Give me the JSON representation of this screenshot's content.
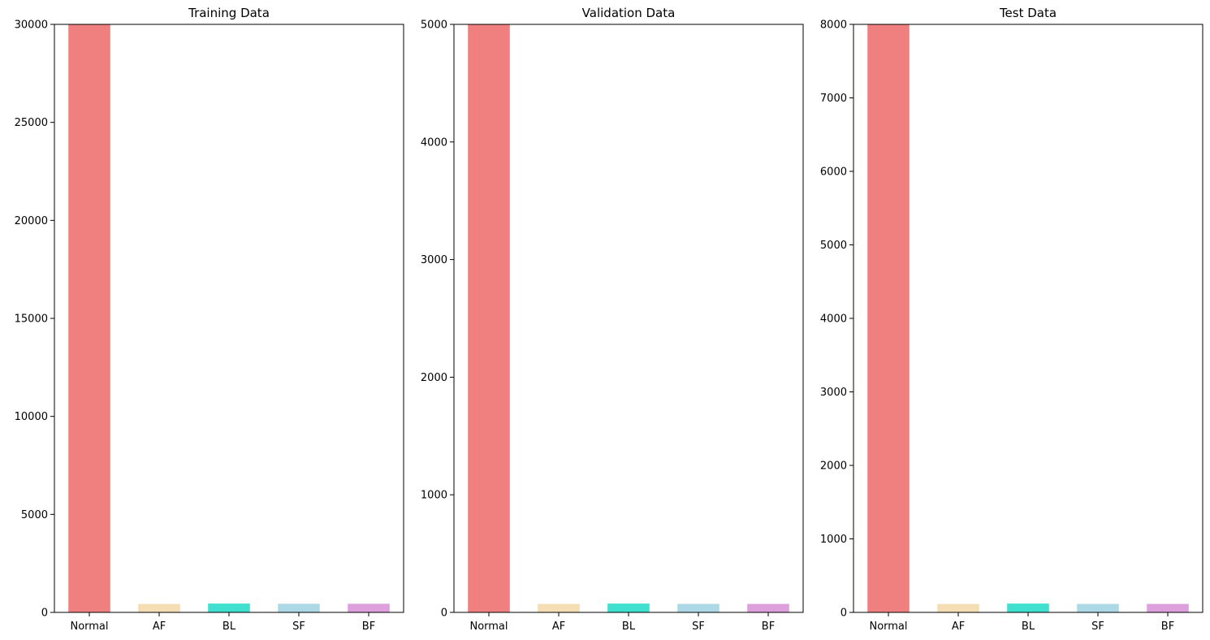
{
  "figure": {
    "background": "#ffffff"
  },
  "chart_data": [
    {
      "type": "bar",
      "title": "Training Data",
      "categories": [
        "Normal",
        "AF",
        "BL",
        "SF",
        "BF"
      ],
      "values": [
        30000,
        430,
        450,
        440,
        440
      ],
      "colors": [
        "#f08080",
        "#f5deb3",
        "#40e0d0",
        "#add8e6",
        "#dda0dd"
      ],
      "ylim": [
        0,
        30000
      ],
      "yticks": [
        0,
        5000,
        10000,
        15000,
        20000,
        25000,
        30000
      ],
      "xlabel": "",
      "ylabel": "",
      "grid": false,
      "legend": false
    },
    {
      "type": "bar",
      "title": "Validation Data",
      "categories": [
        "Normal",
        "AF",
        "BL",
        "SF",
        "BF"
      ],
      "values": [
        5000,
        72,
        75,
        72,
        72
      ],
      "colors": [
        "#f08080",
        "#f5deb3",
        "#40e0d0",
        "#add8e6",
        "#dda0dd"
      ],
      "ylim": [
        0,
        5000
      ],
      "yticks": [
        0,
        1000,
        2000,
        3000,
        4000,
        5000
      ],
      "xlabel": "",
      "ylabel": "",
      "grid": false,
      "legend": false
    },
    {
      "type": "bar",
      "title": "Test Data",
      "categories": [
        "Normal",
        "AF",
        "BL",
        "SF",
        "BF"
      ],
      "values": [
        8000,
        115,
        120,
        115,
        115
      ],
      "colors": [
        "#f08080",
        "#f5deb3",
        "#40e0d0",
        "#add8e6",
        "#dda0dd"
      ],
      "ylim": [
        0,
        8000
      ],
      "yticks": [
        0,
        1000,
        2000,
        3000,
        4000,
        5000,
        6000,
        7000,
        8000
      ],
      "xlabel": "",
      "ylabel": "",
      "grid": false,
      "legend": false
    }
  ]
}
